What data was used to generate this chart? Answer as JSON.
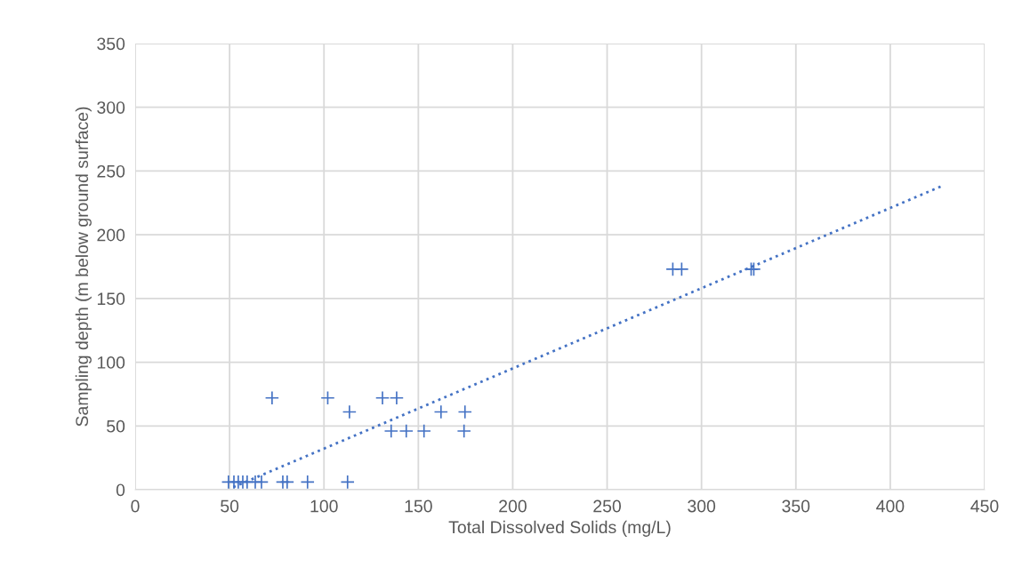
{
  "chart_data": {
    "type": "scatter",
    "xlabel": "Total Dissolved Solids (mg/L)",
    "ylabel": "Sampling depth (m below ground surface)",
    "xlim": [
      0,
      450
    ],
    "xticks": [
      0,
      50,
      100,
      150,
      200,
      250,
      300,
      350,
      400,
      450
    ],
    "ylim": [
      0,
      350
    ],
    "yticks": [
      0,
      50,
      100,
      150,
      200,
      250,
      300,
      350
    ],
    "grid": true,
    "legend": false,
    "series": [
      {
        "color": "#4472c4",
        "marker": "cross",
        "x": [
          72.5,
          102,
          131,
          138.5,
          113.5,
          162,
          174.7,
          135.6,
          143.6,
          153,
          174.2,
          49.4,
          52.3,
          54.6,
          57,
          59.3,
          63.6,
          66.9,
          78.2,
          80.5,
          91.3,
          112.5,
          284.8,
          289.5,
          326.3,
          327.7
        ],
        "values": [
          72,
          72,
          72,
          72,
          61,
          61,
          61,
          46,
          46,
          46,
          46,
          6,
          6,
          6,
          6,
          6,
          6,
          6,
          6,
          6,
          6,
          6,
          173,
          173,
          173,
          173
        ]
      },
      {
        "type": "line",
        "color": "#4472c4",
        "line_style": "dotted",
        "x": [
          52,
          427
        ],
        "values": [
          2,
          238
        ]
      }
    ]
  }
}
